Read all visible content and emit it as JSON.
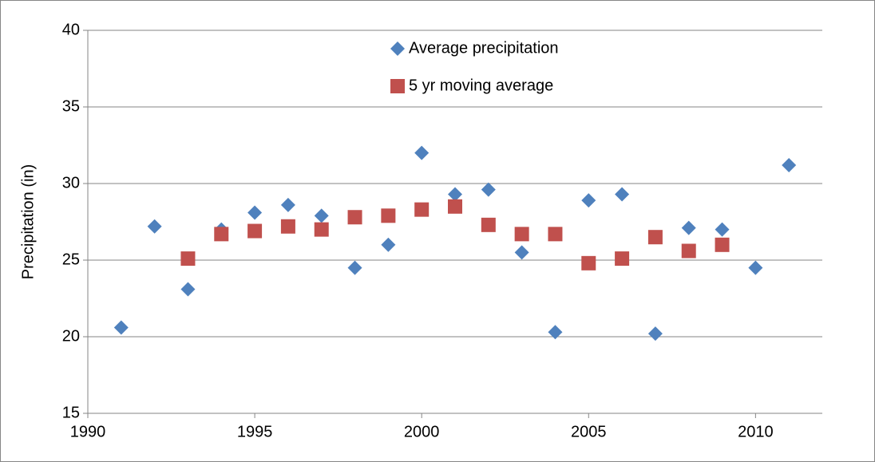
{
  "chart_data": {
    "type": "scatter",
    "ylabel": "Precipitation (in)",
    "xlim": [
      1990,
      2012
    ],
    "xticks": [
      1990,
      1995,
      2000,
      2005,
      2010
    ],
    "ylim": [
      15,
      40
    ],
    "yticks": [
      15,
      20,
      25,
      30,
      35,
      40
    ],
    "grid": true,
    "legend": "top",
    "series": [
      {
        "name": "Average precipitation",
        "color": "#4f81bd",
        "marker": "diamond",
        "x": [
          1991,
          1992,
          1993,
          1994,
          1995,
          1996,
          1997,
          1998,
          1999,
          2000,
          2001,
          2002,
          2003,
          2004,
          2005,
          2006,
          2007,
          2008,
          2009,
          2010,
          2011
        ],
        "values": [
          20.6,
          27.2,
          23.1,
          27.0,
          28.1,
          28.6,
          27.9,
          24.5,
          26.0,
          32.0,
          29.3,
          29.6,
          25.5,
          20.3,
          28.9,
          29.3,
          20.2,
          27.1,
          27.0,
          24.5,
          31.2
        ]
      },
      {
        "name": "5 yr moving average",
        "color": "#c0504d",
        "marker": "square",
        "x": [
          1993,
          1994,
          1995,
          1996,
          1997,
          1998,
          1999,
          2000,
          2001,
          2002,
          2003,
          2004,
          2005,
          2006,
          2007,
          2008,
          2009
        ],
        "values": [
          25.1,
          26.7,
          26.9,
          27.2,
          27.0,
          27.8,
          27.9,
          28.3,
          28.5,
          27.3,
          26.7,
          26.7,
          24.8,
          25.1,
          26.5,
          25.6,
          26.0
        ]
      }
    ]
  }
}
